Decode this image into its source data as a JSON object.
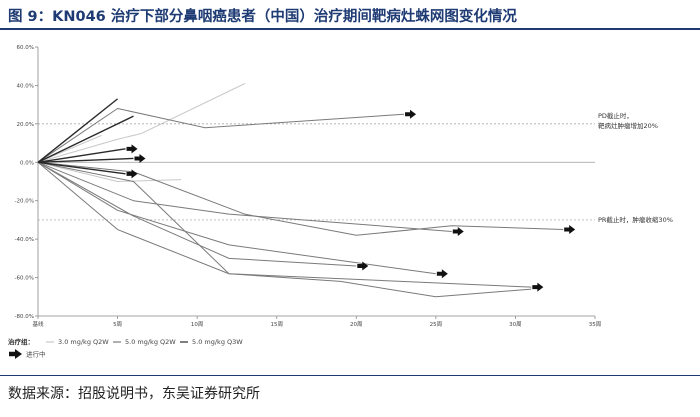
{
  "figure": {
    "title": "图 9：KN046 治疗下部分鼻咽癌患者（中国）治疗期间靶病灶蛛网图变化情况",
    "source": "数据来源：招股说明书，东吴证券研究所"
  },
  "colors": {
    "title": "#1f3b73",
    "series_3mg": "#c8c8c8",
    "series_5mg_q2w": "#7a7a7a",
    "series_5mg_q3w": "#2a2a2a",
    "ongoing_arrow": "#111111",
    "reference_line": "#9a9a9a"
  },
  "chart_data": {
    "type": "line",
    "xlabel": "",
    "ylabel": "",
    "x_ticks": [
      0,
      5,
      10,
      15,
      20,
      25,
      30,
      35
    ],
    "x_tick_labels": [
      "基线",
      "5周",
      "10周",
      "15周",
      "20周",
      "25周",
      "30周",
      "35周"
    ],
    "xlim": [
      0,
      35
    ],
    "ylim": [
      -80,
      60
    ],
    "y_ticks": [
      60,
      40,
      20,
      0,
      -20,
      -40,
      -60,
      -80
    ],
    "y_tick_labels": [
      "60.0%",
      "40.0%",
      "20.0%",
      "0.0%",
      "-20.0%",
      "-40.0%",
      "-60.0%",
      "-80.0%"
    ],
    "grid": false,
    "reference_lines": [
      {
        "y": 20,
        "label_line1": "PD截止时，",
        "label_line2": "靶病灶肿瘤增加20%"
      },
      {
        "y": -30,
        "label_line1": "PR截止时，肿瘤收缩30%",
        "label_line2": ""
      }
    ],
    "legend": {
      "title": "治疗组：",
      "entries": [
        "3.0 mg/kg Q2W",
        "5.0 mg/kg Q2W",
        "5.0 mg/kg Q3W"
      ],
      "ongoing_label": "进行中",
      "placement": "bottom-left"
    },
    "series": [
      {
        "group": 0,
        "x": [
          0,
          5,
          6.5,
          13
        ],
        "y": [
          0,
          12,
          15,
          41
        ],
        "ongoing": false
      },
      {
        "group": 0,
        "x": [
          0,
          5,
          9
        ],
        "y": [
          0,
          -10,
          -9
        ],
        "ongoing": false
      },
      {
        "group": 0,
        "x": [
          0,
          4
        ],
        "y": [
          0,
          14
        ],
        "ongoing": false
      },
      {
        "group": 1,
        "x": [
          0,
          5,
          10.5,
          23
        ],
        "y": [
          0,
          28,
          18,
          25
        ],
        "ongoing": true
      },
      {
        "group": 1,
        "x": [
          0,
          5,
          12,
          31
        ],
        "y": [
          0,
          -35,
          -58,
          -65
        ],
        "ongoing": true
      },
      {
        "group": 1,
        "x": [
          0,
          5,
          12,
          25
        ],
        "y": [
          0,
          -25,
          -43,
          -58
        ],
        "ongoing": true
      },
      {
        "group": 1,
        "x": [
          0,
          6,
          12,
          26
        ],
        "y": [
          0,
          -20,
          -27,
          -36
        ],
        "ongoing": true
      },
      {
        "group": 1,
        "x": [
          0,
          6,
          12,
          20
        ],
        "y": [
          0,
          -28,
          -50,
          -54
        ],
        "ongoing": true
      },
      {
        "group": 1,
        "x": [
          0,
          6,
          13,
          20,
          26,
          33
        ],
        "y": [
          0,
          -5,
          -27,
          -38,
          -33,
          -35
        ],
        "ongoing": true
      },
      {
        "group": 1,
        "x": [
          0,
          6,
          12,
          19,
          25,
          31
        ],
        "y": [
          0,
          -10,
          -58,
          -62,
          -70,
          -66
        ],
        "ongoing": false
      },
      {
        "group": 2,
        "x": [
          0,
          5
        ],
        "y": [
          0,
          33
        ],
        "ongoing": false
      },
      {
        "group": 2,
        "x": [
          0,
          6
        ],
        "y": [
          0,
          24
        ],
        "ongoing": false
      },
      {
        "group": 2,
        "x": [
          0,
          5.5
        ],
        "y": [
          0,
          7
        ],
        "ongoing": true
      },
      {
        "group": 2,
        "x": [
          0,
          6
        ],
        "y": [
          0,
          2
        ],
        "ongoing": true
      },
      {
        "group": 2,
        "x": [
          0,
          5.5
        ],
        "y": [
          0,
          -6
        ],
        "ongoing": true
      }
    ]
  }
}
